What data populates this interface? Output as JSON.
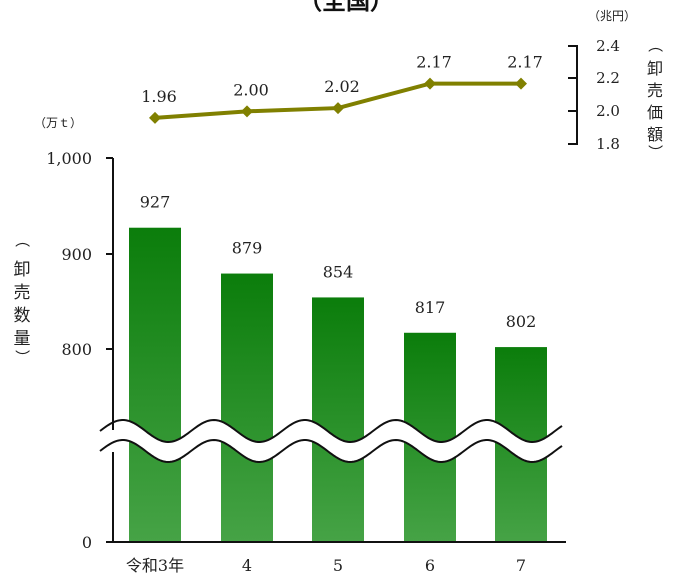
{
  "chart_data": [
    {
      "type": "line",
      "title": "（全国）",
      "unit": "（兆円）",
      "ylabel": [
        "（",
        "卸",
        "売",
        "価",
        "額",
        "）"
      ],
      "categories": [
        "令和3年",
        "4",
        "5",
        "6",
        "7"
      ],
      "values": [
        1.96,
        2.0,
        2.02,
        2.17,
        2.17
      ],
      "value_labels": [
        "1.96",
        "2.00",
        "2.02",
        "2.17",
        "2.17"
      ],
      "ylim": [
        1.8,
        2.4
      ],
      "ticks": [
        "2.4",
        "2.2",
        "2.0",
        "1.8"
      ],
      "color": "#808000",
      "marker": "diamond",
      "axis_position": "right"
    },
    {
      "type": "bar",
      "unit": "（万ｔ）",
      "ylabel": [
        "（",
        "卸",
        "売",
        "数",
        "量",
        "）"
      ],
      "categories": [
        "令和3年",
        "4",
        "5",
        "6",
        "7"
      ],
      "values": [
        927,
        879,
        854,
        817,
        802
      ],
      "value_labels": [
        "927",
        "879",
        "854",
        "817",
        "802"
      ],
      "ylim": [
        0,
        1000
      ],
      "axis_break": true,
      "ticks": [
        "1,000",
        "900",
        "800",
        "0"
      ],
      "color_top": "#0b7d0b",
      "color_bottom": "#46a346"
    }
  ]
}
